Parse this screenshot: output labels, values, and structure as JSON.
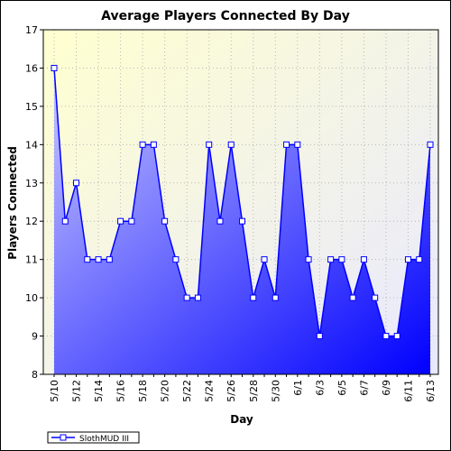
{
  "chart_data": {
    "type": "area",
    "title": "Average Players Connected By Day",
    "xlabel": "Day",
    "ylabel": "Players Connected",
    "ylim": [
      8,
      17
    ],
    "yticks": [
      8,
      9,
      10,
      11,
      12,
      13,
      14,
      15,
      16,
      17
    ],
    "grid": true,
    "legend_position": "bottom-left",
    "x": [
      "5/10",
      "5/11",
      "5/12",
      "5/13",
      "5/14",
      "5/15",
      "5/16",
      "5/17",
      "5/18",
      "5/19",
      "5/20",
      "5/21",
      "5/22",
      "5/23",
      "5/24",
      "5/25",
      "5/26",
      "5/27",
      "5/28",
      "5/29",
      "5/30",
      "5/31",
      "6/1",
      "6/2",
      "6/3",
      "6/4",
      "6/5",
      "6/6",
      "6/7",
      "6/8",
      "6/9",
      "6/10",
      "6/11",
      "6/12",
      "6/13"
    ],
    "x_tick_labels": [
      "5/10",
      "5/12",
      "5/14",
      "5/16",
      "5/18",
      "5/20",
      "5/22",
      "5/24",
      "5/26",
      "5/28",
      "5/30",
      "6/1",
      "6/3",
      "6/5",
      "6/7",
      "6/9",
      "6/11",
      "6/13"
    ],
    "series": [
      {
        "name": "SlothMUD III",
        "values": [
          16,
          12,
          13,
          11,
          11,
          11,
          12,
          12,
          14,
          14,
          12,
          11,
          10,
          10,
          14,
          12,
          14,
          12,
          10,
          11,
          10,
          14,
          14,
          11,
          9,
          11,
          11,
          10,
          11,
          10,
          9,
          9,
          11,
          11,
          14
        ]
      }
    ],
    "colors": {
      "plot_background_top": "#ffffd0",
      "plot_background_bottom": "#e8e8ff",
      "area_top": "#c8c8ff",
      "area_bottom": "#0000ff",
      "line": "#0000ff",
      "marker_fill": "#ffffff"
    }
  }
}
